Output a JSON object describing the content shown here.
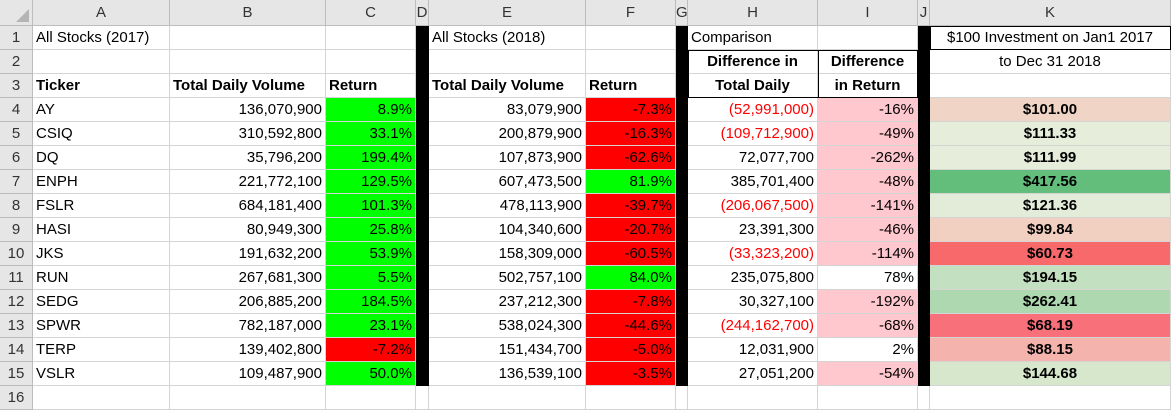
{
  "columns": [
    "A",
    "B",
    "C",
    "D",
    "E",
    "F",
    "G",
    "H",
    "I",
    "J",
    "K"
  ],
  "row_numbers": [
    "1",
    "2",
    "3",
    "4",
    "5",
    "6",
    "7",
    "8",
    "9",
    "10",
    "11",
    "12",
    "13",
    "14",
    "15",
    "16"
  ],
  "header_rows": {
    "a1": "All Stocks (2017)",
    "e1": "All Stocks (2018)",
    "h1": "Comparison",
    "k1": "$100 Investment on Jan1 2017",
    "h2": "Difference in",
    "i2": "Difference",
    "k2": "to Dec 31 2018",
    "a3": "Ticker",
    "b3": "Total Daily Volume",
    "c3": "Return",
    "e3": "Total Daily Volume",
    "f3": "Return",
    "h3": "Total Daily",
    "i3": "in Return"
  },
  "rows": [
    {
      "ticker": "AY",
      "vol2017": "136,070,900",
      "ret2017": "8.9%",
      "vol2018": "83,079,900",
      "ret2018": "-7.3%",
      "diff_vol": "(52,991,000)",
      "diff_ret": "-16%",
      "inv": "$101.00"
    },
    {
      "ticker": "CSIQ",
      "vol2017": "310,592,800",
      "ret2017": "33.1%",
      "vol2018": "200,879,900",
      "ret2018": "-16.3%",
      "diff_vol": "(109,712,900)",
      "diff_ret": "-49%",
      "inv": "$111.33"
    },
    {
      "ticker": "DQ",
      "vol2017": "35,796,200",
      "ret2017": "199.4%",
      "vol2018": "107,873,900",
      "ret2018": "-62.6%",
      "diff_vol": "72,077,700",
      "diff_ret": "-262%",
      "inv": "$111.99"
    },
    {
      "ticker": "ENPH",
      "vol2017": "221,772,100",
      "ret2017": "129.5%",
      "vol2018": "607,473,500",
      "ret2018": "81.9%",
      "diff_vol": "385,701,400",
      "diff_ret": "-48%",
      "inv": "$417.56"
    },
    {
      "ticker": "FSLR",
      "vol2017": "684,181,400",
      "ret2017": "101.3%",
      "vol2018": "478,113,900",
      "ret2018": "-39.7%",
      "diff_vol": "(206,067,500)",
      "diff_ret": "-141%",
      "inv": "$121.36"
    },
    {
      "ticker": "HASI",
      "vol2017": "80,949,300",
      "ret2017": "25.8%",
      "vol2018": "104,340,600",
      "ret2018": "-20.7%",
      "diff_vol": "23,391,300",
      "diff_ret": "-46%",
      "inv": "$99.84"
    },
    {
      "ticker": "JKS",
      "vol2017": "191,632,200",
      "ret2017": "53.9%",
      "vol2018": "158,309,000",
      "ret2018": "-60.5%",
      "diff_vol": "(33,323,200)",
      "diff_ret": "-114%",
      "inv": "$60.73"
    },
    {
      "ticker": "RUN",
      "vol2017": "267,681,300",
      "ret2017": "5.5%",
      "vol2018": "502,757,100",
      "ret2018": "84.0%",
      "diff_vol": "235,075,800",
      "diff_ret": "78%",
      "inv": "$194.15"
    },
    {
      "ticker": "SEDG",
      "vol2017": "206,885,200",
      "ret2017": "184.5%",
      "vol2018": "237,212,300",
      "ret2018": "-7.8%",
      "diff_vol": "30,327,100",
      "diff_ret": "-192%",
      "inv": "$262.41"
    },
    {
      "ticker": "SPWR",
      "vol2017": "782,187,000",
      "ret2017": "23.1%",
      "vol2018": "538,024,300",
      "ret2018": "-44.6%",
      "diff_vol": "(244,162,700)",
      "diff_ret": "-68%",
      "inv": "$68.19"
    },
    {
      "ticker": "TERP",
      "vol2017": "139,402,800",
      "ret2017": "-7.2%",
      "vol2018": "151,434,700",
      "ret2018": "-5.0%",
      "diff_vol": "12,031,900",
      "diff_ret": "2%",
      "inv": "$88.15"
    },
    {
      "ticker": "VSLR",
      "vol2017": "109,487,900",
      "ret2017": "50.0%",
      "vol2018": "136,539,100",
      "ret2018": "-3.5%",
      "diff_vol": "27,051,200",
      "diff_ret": "-54%",
      "inv": "$144.68"
    }
  ],
  "colors": {
    "positive_fill": "#00ff00",
    "negative_fill": "#ff0000",
    "diff_return_negative_fill": "#ffc7ce",
    "negative_text": "#ff0000",
    "investment_scale": [
      "#63be7b",
      "#d8e9cb",
      "#e9eedc",
      "#efd4c5",
      "#f8696b"
    ]
  },
  "investment_fills": [
    "#f0d5c6",
    "#e6eddb",
    "#e6eddb",
    "#63be7b",
    "#e3ecd8",
    "#f1cfc1",
    "#f8696b",
    "#c3e1c0",
    "#add8b0",
    "#f8717a",
    "#f4b3ac",
    "#d6e7cb"
  ]
}
